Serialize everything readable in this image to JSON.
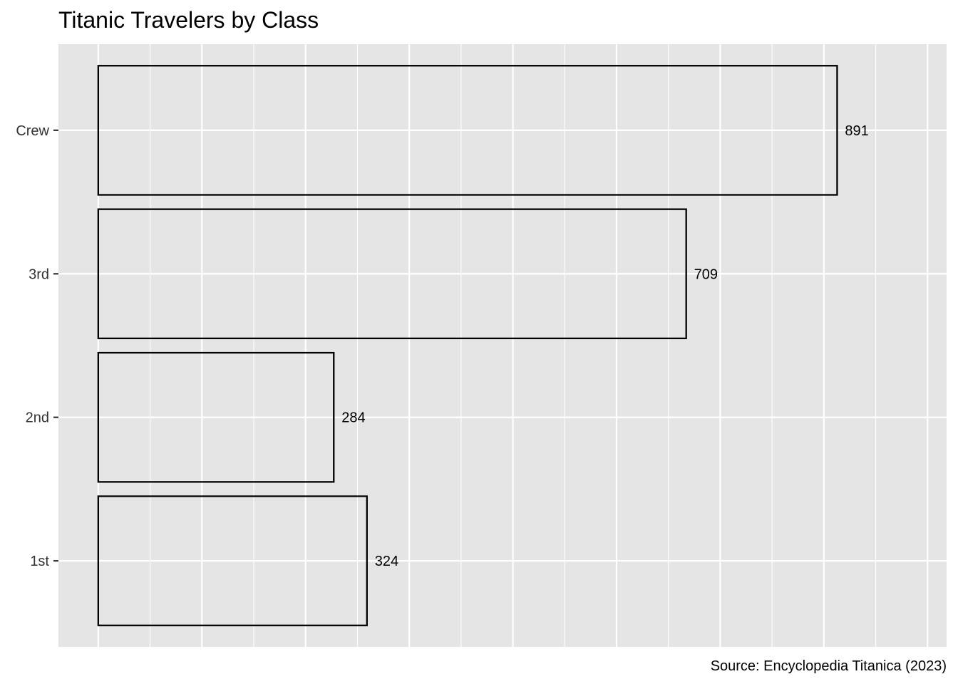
{
  "chart_data": {
    "type": "bar",
    "orientation": "horizontal",
    "title": "Titanic Travelers by Class",
    "caption": "Source: Encyclopedia Titanica (2023)",
    "categories": [
      "1st",
      "2nd",
      "3rd",
      "Crew"
    ],
    "values": [
      324,
      284,
      709,
      891
    ],
    "data_labels": [
      "324",
      "284",
      "709",
      "891"
    ],
    "xlim": [
      -48,
      1023
    ],
    "x_gridline_step": 125,
    "x_tick_labels_shown": false,
    "grid": true,
    "legend": "none",
    "colors": {
      "panel_background": "#e5e5e5",
      "grid": "#ffffff",
      "bar_fill": "none",
      "bar_outline": "#000000"
    }
  }
}
